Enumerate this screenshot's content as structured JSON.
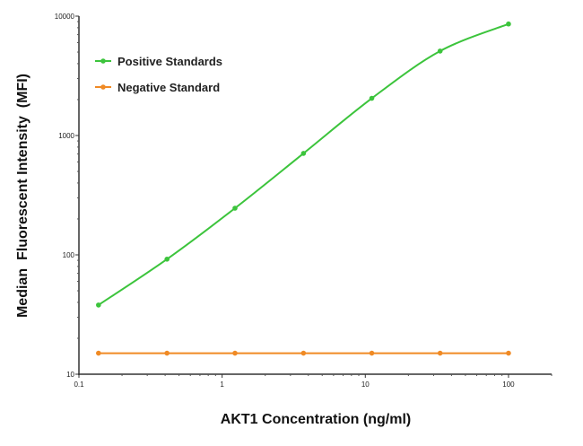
{
  "chart_data": {
    "type": "line",
    "title": "",
    "xlabel": "AKT1 Concentration (ng/ml)",
    "ylabel": "Median  Fluorescent Intensity  (MFI)",
    "xscale": "log",
    "yscale": "log",
    "xlim": [
      0.1,
      200
    ],
    "ylim": [
      10,
      10000
    ],
    "xticks": [
      0.1,
      1,
      10,
      100
    ],
    "xtick_labels": [
      "0.1",
      "1",
      "10",
      "100"
    ],
    "yticks": [
      10,
      100,
      1000,
      10000
    ],
    "ytick_labels": [
      "10",
      "100",
      "1000",
      "10000"
    ],
    "grid": false,
    "legend_placement": "top-left",
    "x": [
      0.137,
      0.412,
      1.23,
      3.7,
      11.1,
      33.3,
      100
    ],
    "series": [
      {
        "name": "Positive Standards",
        "color": "#3cc43c",
        "values": [
          38,
          92,
          246,
          708,
          2050,
          5100,
          8600
        ]
      },
      {
        "name": "Negative Standard",
        "color": "#f08a24",
        "values": [
          15,
          15,
          15,
          15,
          15,
          15,
          15
        ]
      }
    ]
  }
}
